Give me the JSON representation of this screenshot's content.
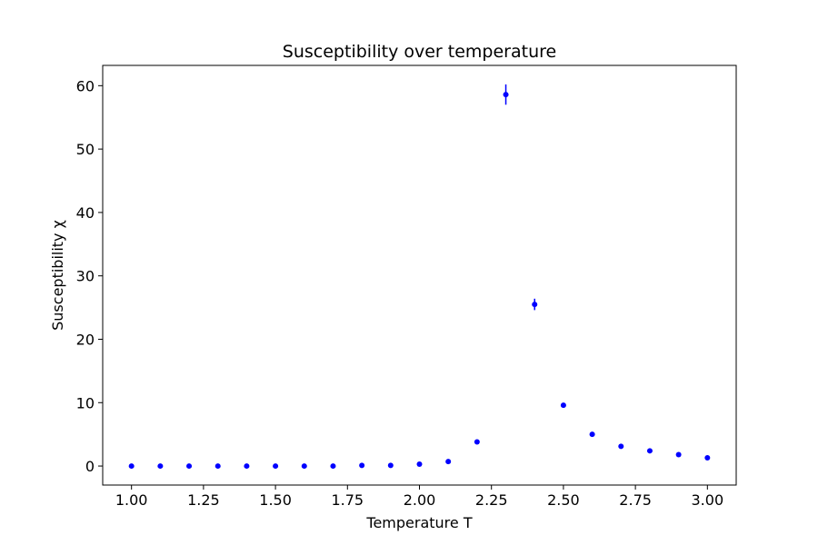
{
  "chart_data": {
    "type": "scatter",
    "title": "Susceptibility over temperature",
    "xlabel": "Temperature T",
    "ylabel": "Susceptibility χ",
    "xlim": [
      0.9,
      3.1
    ],
    "ylim": [
      -3.0,
      63.2
    ],
    "xticks": [
      1.0,
      1.25,
      1.5,
      1.75,
      2.0,
      2.25,
      2.5,
      2.75,
      3.0
    ],
    "xtick_labels": [
      "1.00",
      "1.25",
      "1.50",
      "1.75",
      "2.00",
      "2.25",
      "2.50",
      "2.75",
      "3.00"
    ],
    "yticks": [
      0,
      10,
      20,
      30,
      40,
      50,
      60
    ],
    "ytick_labels": [
      "0",
      "10",
      "20",
      "30",
      "40",
      "50",
      "60"
    ],
    "grid": false,
    "legend": false,
    "marker_color": "#0000ff",
    "series": [
      {
        "x": [
          1.0,
          1.1,
          1.2,
          1.3,
          1.4,
          1.5,
          1.6,
          1.7,
          1.8,
          1.9,
          2.0,
          2.1,
          2.2,
          2.3,
          2.4,
          2.5,
          2.6,
          2.7,
          2.8,
          2.9,
          3.0
        ],
        "y": [
          0.0,
          0.0,
          0.0,
          0.0,
          0.0,
          0.0,
          0.0,
          0.0,
          0.1,
          0.1,
          0.3,
          0.7,
          3.8,
          58.6,
          25.5,
          9.6,
          5.0,
          3.1,
          2.4,
          1.8,
          1.3
        ],
        "yerr": [
          0,
          0,
          0,
          0,
          0,
          0,
          0,
          0,
          0,
          0,
          0,
          0,
          0,
          1.6,
          0.9,
          0,
          0,
          0,
          0,
          0,
          0
        ]
      }
    ]
  }
}
